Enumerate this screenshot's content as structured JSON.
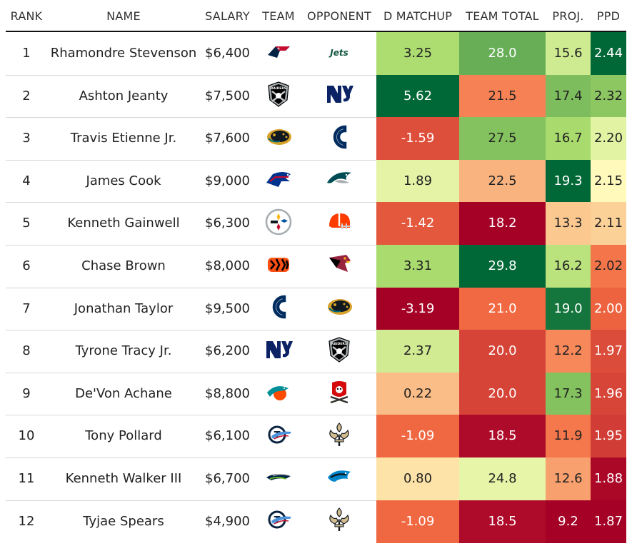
{
  "chart_data": {
    "type": "table",
    "columns": [
      "RANK",
      "NAME",
      "SALARY",
      "TEAM",
      "OPPONENT",
      "D MATCHUP",
      "TEAM TOTAL",
      "PROJ.",
      "PPD"
    ],
    "rows": [
      {
        "rank": "1",
        "name": "Rhamondre Stevenson",
        "salary": "$6,400",
        "team": "patriots-logo",
        "opponent": "jets-logo",
        "d_matchup": "3.25",
        "team_total": "28.0",
        "proj": "15.6",
        "ppd": "2.44"
      },
      {
        "rank": "2",
        "name": "Ashton Jeanty",
        "salary": "$7,500",
        "team": "raiders-logo",
        "opponent": "giants-logo",
        "d_matchup": "5.62",
        "team_total": "21.5",
        "proj": "17.4",
        "ppd": "2.32"
      },
      {
        "rank": "3",
        "name": "Travis Etienne Jr.",
        "salary": "$7,600",
        "team": "jaguars-logo",
        "opponent": "colts-logo",
        "d_matchup": "-1.59",
        "team_total": "27.5",
        "proj": "16.7",
        "ppd": "2.20"
      },
      {
        "rank": "4",
        "name": "James Cook",
        "salary": "$9,000",
        "team": "bills-logo",
        "opponent": "eagles-logo",
        "d_matchup": "1.89",
        "team_total": "22.5",
        "proj": "19.3",
        "ppd": "2.15"
      },
      {
        "rank": "5",
        "name": "Kenneth Gainwell",
        "salary": "$6,300",
        "team": "steelers-logo",
        "opponent": "browns-logo",
        "d_matchup": "-1.42",
        "team_total": "18.2",
        "proj": "13.3",
        "ppd": "2.11"
      },
      {
        "rank": "6",
        "name": "Chase Brown",
        "salary": "$8,000",
        "team": "bengals-logo",
        "opponent": "cardinals-logo",
        "d_matchup": "3.31",
        "team_total": "29.8",
        "proj": "16.2",
        "ppd": "2.02"
      },
      {
        "rank": "7",
        "name": "Jonathan Taylor",
        "salary": "$9,500",
        "team": "colts-logo",
        "opponent": "jaguars-logo",
        "d_matchup": "-3.19",
        "team_total": "21.0",
        "proj": "19.0",
        "ppd": "2.00"
      },
      {
        "rank": "8",
        "name": "Tyrone Tracy Jr.",
        "salary": "$6,200",
        "team": "giants-logo",
        "opponent": "raiders-logo",
        "d_matchup": "2.37",
        "team_total": "20.0",
        "proj": "12.2",
        "ppd": "1.97"
      },
      {
        "rank": "9",
        "name": "De'Von Achane",
        "salary": "$8,800",
        "team": "dolphins-logo",
        "opponent": "buccaneers-logo",
        "d_matchup": "0.22",
        "team_total": "20.0",
        "proj": "17.3",
        "ppd": "1.96"
      },
      {
        "rank": "10",
        "name": "Tony Pollard",
        "salary": "$6,100",
        "team": "titans-logo",
        "opponent": "saints-logo",
        "d_matchup": "-1.09",
        "team_total": "18.5",
        "proj": "11.9",
        "ppd": "1.95"
      },
      {
        "rank": "11",
        "name": "Kenneth Walker III",
        "salary": "$6,700",
        "team": "seahawks-logo",
        "opponent": "panthers-logo",
        "d_matchup": "0.80",
        "team_total": "24.8",
        "proj": "12.6",
        "ppd": "1.88"
      },
      {
        "rank": "12",
        "name": "Tyjae Spears",
        "salary": "$4,900",
        "team": "titans-logo",
        "opponent": "saints-logo",
        "d_matchup": "-1.09",
        "team_total": "18.5",
        "proj": "9.2",
        "ppd": "1.87"
      }
    ],
    "logo_text": {
      "jets": "Jets",
      "raiders": "RAIDERS"
    },
    "color_scale": {
      "low": "#a50026",
      "mid_low": "#f46d43",
      "mid": "#ffffbf",
      "mid_high": "#a6d96a",
      "high": "#006837"
    }
  }
}
